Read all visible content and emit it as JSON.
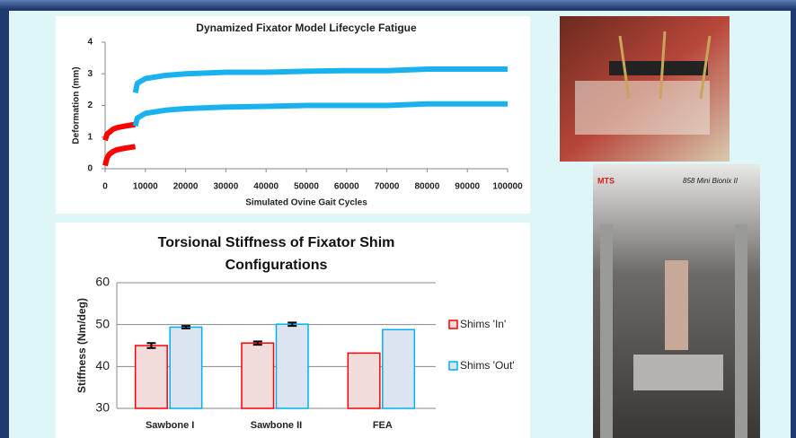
{
  "chart_data": [
    {
      "type": "line",
      "title": "Dynamized Fixator Model Lifecycle Fatigue",
      "x_label": "Simulated Ovine Gait Cycles",
      "y_label": "Deformation (mm)",
      "xlim": [
        0,
        100000
      ],
      "xticks": [
        0,
        10000,
        20000,
        30000,
        40000,
        50000,
        60000,
        70000,
        80000,
        90000,
        100000
      ],
      "ylim": [
        0,
        4
      ],
      "yticks": [
        0,
        1,
        2,
        3,
        4
      ],
      "grid": false,
      "series": [
        {
          "color": "#ff0000",
          "x": [
            0,
            500,
            1000,
            2000,
            3000,
            5000,
            7500
          ],
          "values": [
            0.1,
            0.35,
            0.45,
            0.55,
            0.6,
            0.65,
            0.7
          ]
        },
        {
          "color": "#ff0000",
          "x": [
            0,
            500,
            1000,
            2000,
            3000,
            5000,
            7500
          ],
          "values": [
            0.9,
            1.1,
            1.15,
            1.25,
            1.3,
            1.35,
            1.4
          ]
        },
        {
          "color": "#1ab2ee",
          "x": [
            7500,
            8000,
            10000,
            15000,
            20000,
            30000,
            40000,
            50000,
            60000,
            70000,
            80000,
            90000,
            100000
          ],
          "values": [
            1.35,
            1.6,
            1.75,
            1.85,
            1.9,
            1.95,
            1.97,
            2.0,
            2.0,
            2.0,
            2.05,
            2.05,
            2.05
          ]
        },
        {
          "color": "#1ab2ee",
          "x": [
            7500,
            8000,
            10000,
            15000,
            20000,
            30000,
            40000,
            50000,
            60000,
            70000,
            80000,
            90000,
            100000
          ],
          "values": [
            2.4,
            2.7,
            2.85,
            2.95,
            3.0,
            3.05,
            3.05,
            3.08,
            3.1,
            3.1,
            3.15,
            3.15,
            3.15
          ]
        }
      ]
    },
    {
      "type": "bar",
      "title": "Torsional Stiffness of Fixator Shim Configurations",
      "y_label": "Stiffness (Nm/deg)",
      "categories": [
        "Sawbone I",
        "Sawbone II",
        "FEA"
      ],
      "ylim": [
        30,
        60
      ],
      "yticks": [
        30,
        40,
        50,
        60
      ],
      "grid": true,
      "legend": "right",
      "series": [
        {
          "name": "Shims 'In'",
          "color": "#ff0000",
          "fill": "#f2dcdb",
          "values": [
            45,
            45.6,
            43.2
          ],
          "errors": [
            0.6,
            0.4,
            null
          ]
        },
        {
          "name": "Shims 'Out'",
          "color": "#00b0f0",
          "fill": "#dbe5f1",
          "values": [
            49.4,
            50.1,
            48.8
          ],
          "errors": [
            0.3,
            0.4,
            null
          ]
        }
      ]
    }
  ],
  "images": [
    {
      "labels": []
    },
    {
      "labels": [
        "MTS",
        "858 Mini Bionix II"
      ]
    }
  ]
}
